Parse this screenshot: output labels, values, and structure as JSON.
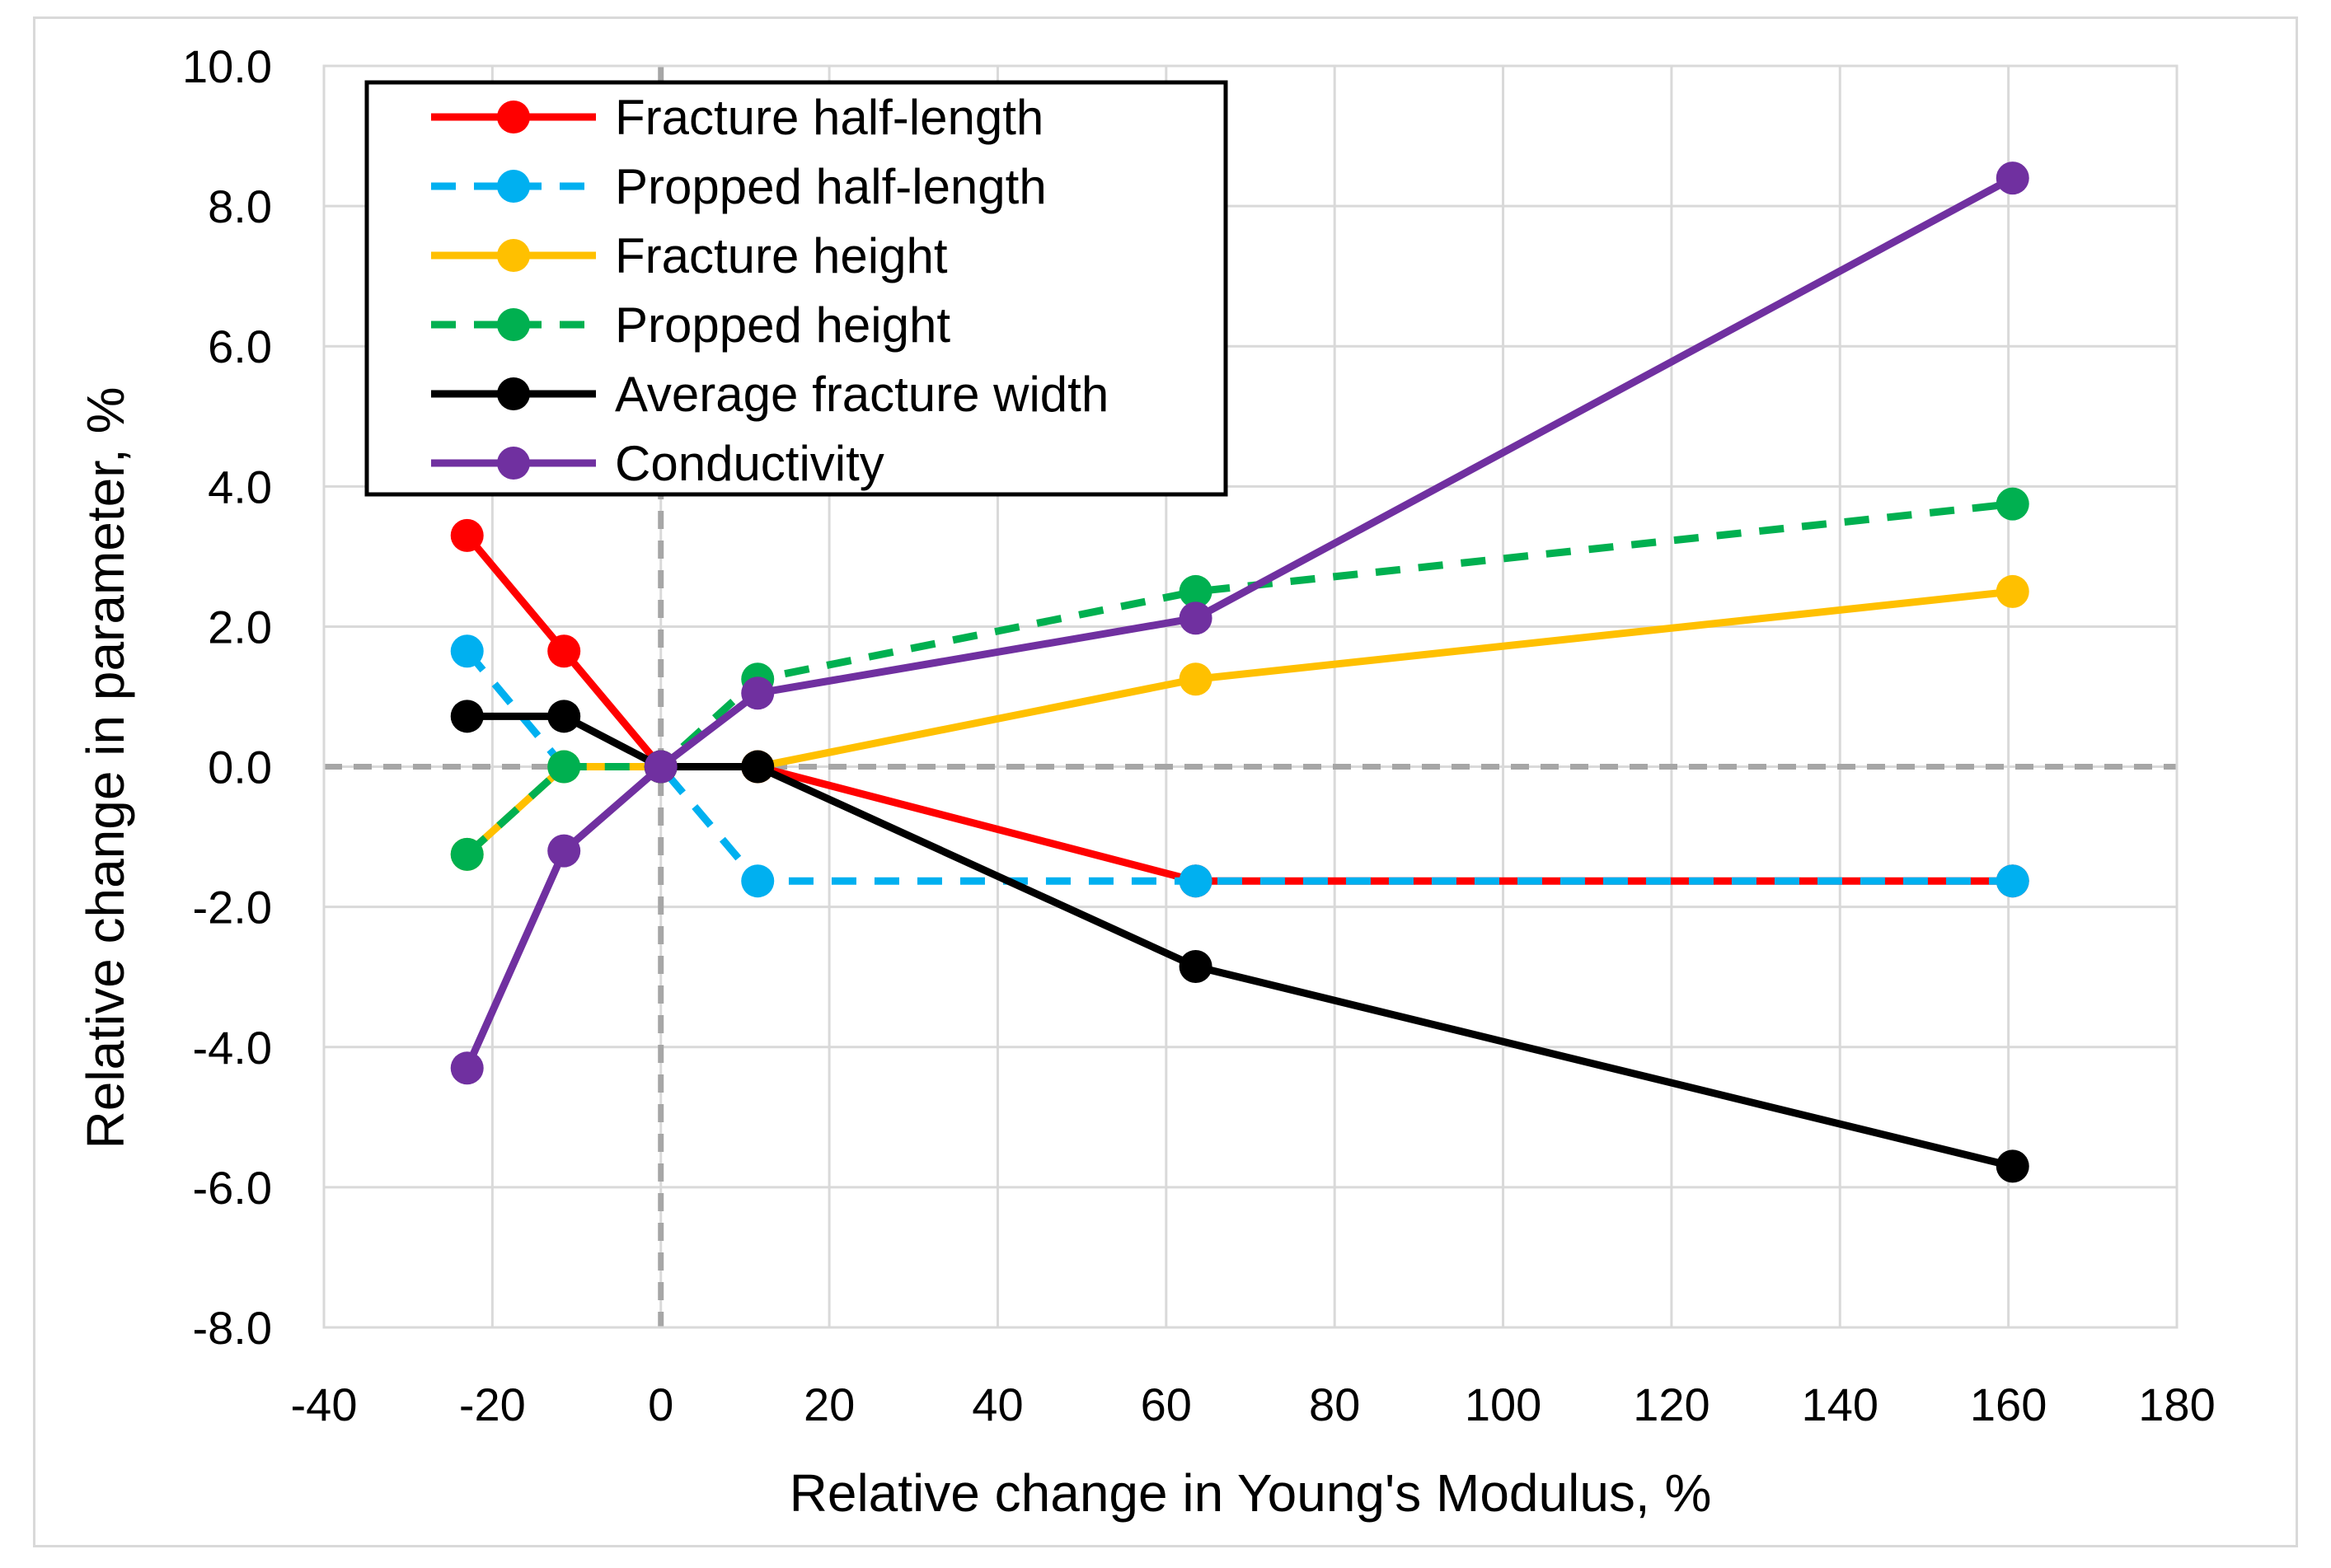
{
  "chart_data": {
    "type": "line",
    "title": "",
    "xlabel": "Relative change in Young's Modulus, %",
    "ylabel": "Relative change in parameter, %",
    "xlim": [
      -40,
      180
    ],
    "ylim": [
      -8,
      10
    ],
    "x_ticks": [
      -40,
      -20,
      0,
      20,
      40,
      60,
      80,
      100,
      120,
      140,
      160,
      180
    ],
    "x_tick_labels": [
      "-40",
      "-20",
      "0",
      "20",
      "40",
      "60",
      "80",
      "100",
      "120",
      "140",
      "160",
      "180"
    ],
    "y_ticks": [
      -8,
      -6,
      -4,
      -2,
      0,
      2,
      4,
      6,
      8,
      10
    ],
    "y_tick_labels": [
      "-8.0",
      "-6.0",
      "-4.0",
      "-2.0",
      "0.0",
      "2.0",
      "4.0",
      "6.0",
      "8.0",
      "10.0"
    ],
    "grid": true,
    "reference_lines": {
      "x": 0,
      "y": 0,
      "color": "#a6a6a6",
      "style": "dashed"
    },
    "legend_position": "top-left",
    "series": [
      {
        "name": "Fracture half-length",
        "color": "#ff0000",
        "dashed": false,
        "x": [
          -23,
          -11.5,
          0,
          11.5,
          63.5,
          160.5
        ],
        "y": [
          3.3,
          1.65,
          0,
          0,
          -1.63,
          -1.63
        ]
      },
      {
        "name": "Propped half-length",
        "color": "#00b0f0",
        "dashed": true,
        "x": [
          -23,
          -11.5,
          0,
          11.5,
          63.5,
          160.5
        ],
        "y": [
          1.65,
          0,
          0,
          -1.63,
          -1.63,
          -1.63
        ]
      },
      {
        "name": "Fracture height",
        "color": "#ffc000",
        "dashed": false,
        "x": [
          -23,
          -11.5,
          0,
          11.5,
          63.5,
          160.5
        ],
        "y": [
          -1.25,
          0,
          0,
          0,
          1.25,
          2.5
        ]
      },
      {
        "name": "Propped height",
        "color": "#00b050",
        "dashed": true,
        "x": [
          -23,
          -11.5,
          0,
          11.5,
          63.5,
          160.5
        ],
        "y": [
          -1.25,
          0,
          0,
          1.25,
          2.5,
          3.75
        ]
      },
      {
        "name": "Average fracture width",
        "color": "#000000",
        "dashed": false,
        "x": [
          -23,
          -11.5,
          0,
          11.5,
          63.5,
          160.5
        ],
        "y": [
          0.72,
          0.72,
          0,
          0,
          -2.85,
          -5.7
        ]
      },
      {
        "name": "Conductivity",
        "color": "#7030a0",
        "dashed": false,
        "x": [
          -23,
          -11.5,
          0,
          11.5,
          63.5,
          160.5
        ],
        "y": [
          -4.3,
          -1.2,
          0,
          1.05,
          2.12,
          8.4
        ]
      }
    ]
  }
}
